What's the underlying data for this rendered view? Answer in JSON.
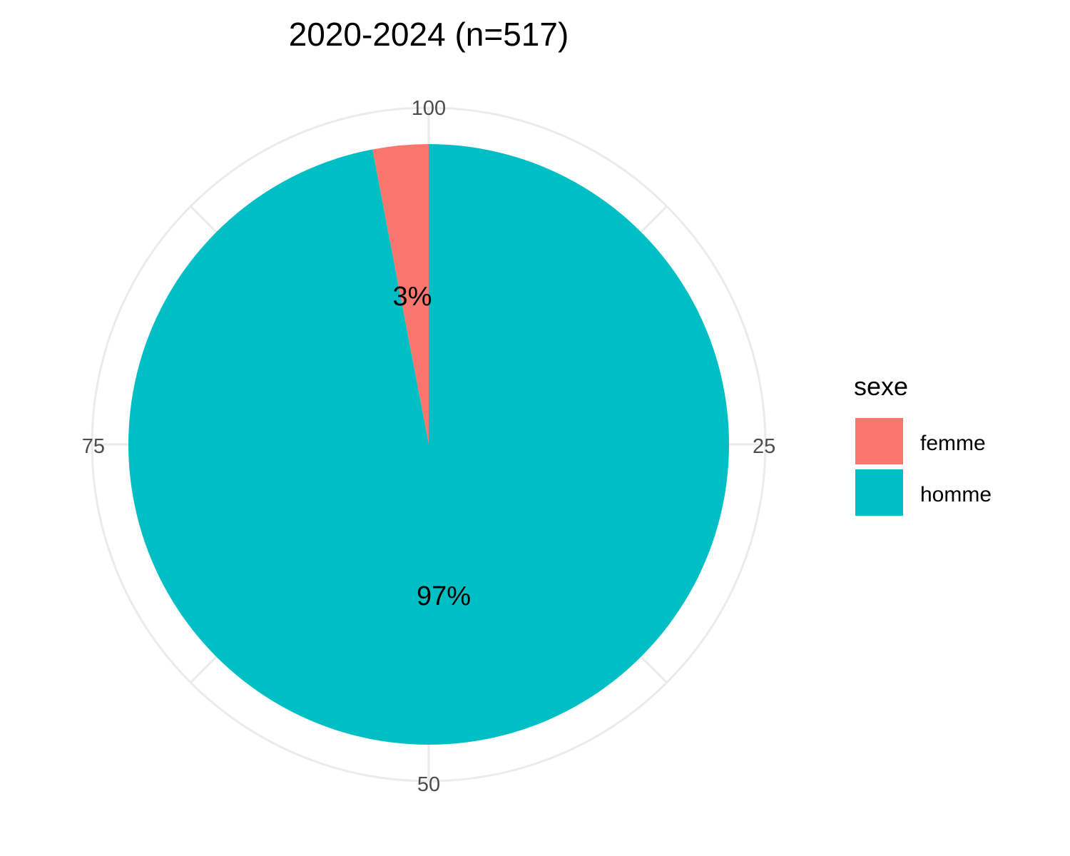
{
  "chart_data": {
    "type": "pie",
    "title": "2020-2024 (n=517)",
    "categories": [
      "femme",
      "homme"
    ],
    "values": [
      3,
      97
    ],
    "labels": [
      "3%",
      "97%"
    ],
    "colors": {
      "femme": "#F8766D",
      "homme": "#00BFC4",
      "grid": "#EBEBEB",
      "tick": "#4D4D4D"
    },
    "theta_ticks": [
      "100",
      "25",
      "50",
      "75"
    ],
    "theta_tick_values": [
      100,
      25,
      50,
      75
    ],
    "theta_range": [
      0,
      100
    ],
    "direction": "clockwise",
    "grid": true,
    "legend": {
      "title": "sexe",
      "position": "right",
      "items": [
        "femme",
        "homme"
      ]
    }
  }
}
